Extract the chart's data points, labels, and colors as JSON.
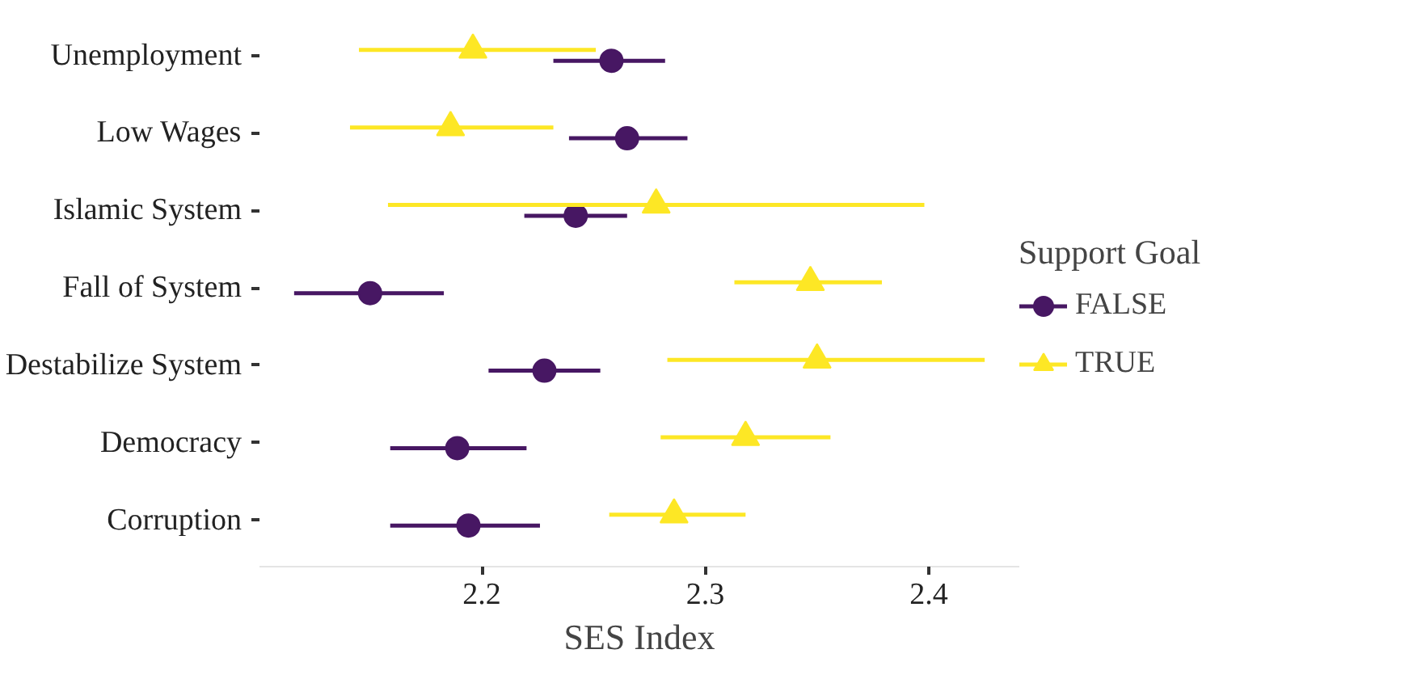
{
  "chart_data": {
    "type": "scatter",
    "orientation": "horizontal",
    "xlabel": "SES Index",
    "legend_title": "Support Goal",
    "legend": "right",
    "grid": false,
    "categories": [
      "Unemployment",
      "Low Wages",
      "Islamic System",
      "Fall of System",
      "Destabilize System",
      "Democracy",
      "Corruption"
    ],
    "xlim": [
      2.1005,
      2.4405
    ],
    "xticks": [
      2.2,
      2.3,
      2.4
    ],
    "series": [
      {
        "name": "FALSE",
        "color": "#471763",
        "marker": "circle",
        "values": [
          2.258,
          2.265,
          2.242,
          2.15,
          2.228,
          2.189,
          2.194
        ],
        "errors": [
          [
            2.232,
            2.282
          ],
          [
            2.239,
            2.292
          ],
          [
            2.219,
            2.265
          ],
          [
            2.116,
            2.183
          ],
          [
            2.203,
            2.253
          ],
          [
            2.159,
            2.22
          ],
          [
            2.159,
            2.226
          ]
        ]
      },
      {
        "name": "TRUE",
        "color": "#fde725",
        "marker": "triangle",
        "values": [
          2.196,
          2.186,
          2.278,
          2.347,
          2.35,
          2.318,
          2.286
        ],
        "errors": [
          [
            2.145,
            2.251
          ],
          [
            2.141,
            2.232
          ],
          [
            2.158,
            2.398
          ],
          [
            2.313,
            2.379
          ],
          [
            2.283,
            2.425
          ],
          [
            2.28,
            2.356
          ],
          [
            2.257,
            2.318
          ]
        ]
      }
    ]
  }
}
